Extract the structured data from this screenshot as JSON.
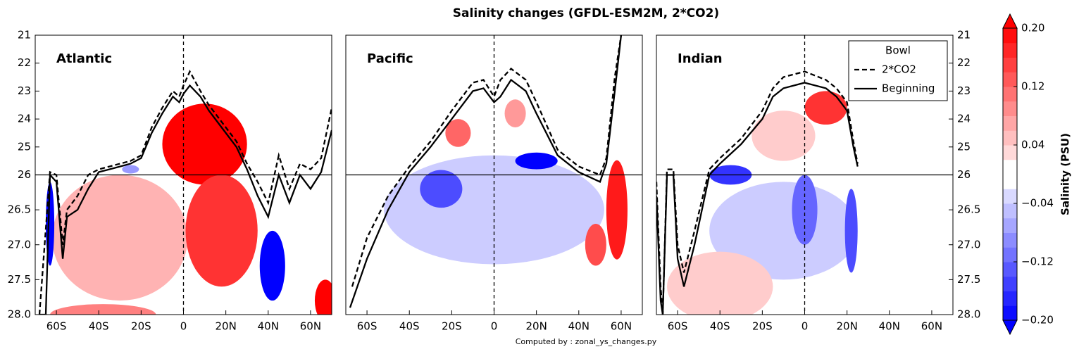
{
  "title": "Salinity changes (GFDL-ESM2M, 2*CO2)",
  "footnote": "Computed by : zonal_ys_changes.py",
  "colorbar": {
    "label": "Salinity (PSU)",
    "extend": "both",
    "levels": [
      -0.2,
      -0.18,
      -0.16,
      -0.14,
      -0.12,
      -0.1,
      -0.08,
      -0.06,
      -0.04,
      -0.02,
      0,
      0.02,
      0.04,
      0.06,
      0.08,
      0.1,
      0.12,
      0.14,
      0.16,
      0.18,
      0.2
    ],
    "ticks": [
      {
        "value": 0.2,
        "label": "0.20"
      },
      0.12,
      0.04,
      {
        "value": -0.04,
        "label": "−0.04"
      },
      {
        "value": -0.12,
        "label": "−0.12"
      },
      {
        "value": -0.2,
        "label": "−0.20"
      }
    ]
  },
  "chart_data": [
    {
      "type": "contour",
      "panel_title": "Atlantic",
      "xlim": [
        -70,
        70
      ],
      "xticks": [
        {
          "value": -60,
          "label": "60S"
        },
        {
          "value": -40,
          "label": "40S"
        },
        {
          "value": -20,
          "label": "20S"
        },
        0,
        {
          "value": 20,
          "label": "20N"
        },
        {
          "value": 40,
          "label": "40N"
        },
        {
          "value": 60,
          "label": "60N"
        }
      ],
      "ylim": [
        21,
        28
      ],
      "yticks": [
        21,
        22,
        23,
        24,
        25,
        26,
        26.5,
        {
          "value": 27,
          "label": "27.0"
        },
        27.5,
        {
          "value": 28,
          "label": "28.0"
        }
      ],
      "ytick_side": "left",
      "hline": 26,
      "vline": 0,
      "fields": [
        {
          "lat": -30,
          "sigma": 26.9,
          "lat_halfwidth": 32,
          "sigma_halfheight": 0.9,
          "value": 0.06
        },
        {
          "lat": 10,
          "sigma": 24.9,
          "lat_halfwidth": 20,
          "sigma_halfheight": 1.3,
          "value": 0.2
        },
        {
          "lat": 18,
          "sigma": 26.8,
          "lat_halfwidth": 17,
          "sigma_halfheight": 0.8,
          "value": 0.16
        },
        {
          "lat": -38,
          "sigma": 28,
          "lat_halfwidth": 25,
          "sigma_halfheight": 0.15,
          "value": 0.1
        },
        {
          "lat": 42,
          "sigma": 27.3,
          "lat_halfwidth": 6,
          "sigma_halfheight": 0.5,
          "value": -0.2
        },
        {
          "lat": -63,
          "sigma": 26.7,
          "lat_halfwidth": 2,
          "sigma_halfheight": 0.6,
          "value": -0.2
        },
        {
          "lat": 67,
          "sigma": 27.8,
          "lat_halfwidth": 5,
          "sigma_halfheight": 0.3,
          "value": 0.2
        },
        {
          "lat": -25,
          "sigma": 25.8,
          "lat_halfwidth": 4,
          "sigma_halfheight": 0.15,
          "value": -0.08
        }
      ],
      "series": [
        {
          "color": "#000000",
          "dashed": true,
          "x": [
            -68,
            -63,
            -60,
            -57,
            -55,
            -50,
            -45,
            -40,
            -35,
            -30,
            -25,
            -20,
            -15,
            -10,
            -5,
            -2,
            0,
            3,
            8,
            12,
            18,
            25,
            30,
            35,
            40,
            45,
            50,
            55,
            60,
            65,
            70
          ],
          "y": [
            28,
            25.9,
            26,
            27,
            26.5,
            26.3,
            26.0,
            25.8,
            25.7,
            25.6,
            25.5,
            25.3,
            24.3,
            23.6,
            23.0,
            23.2,
            22.8,
            22.3,
            23.0,
            23.5,
            24.1,
            24.8,
            25.6,
            26.1,
            26.4,
            25.3,
            26.2,
            25.6,
            25.8,
            25.4,
            23.6
          ]
        },
        {
          "color": "#000000",
          "dashed": false,
          "x": [
            -68,
            -65,
            -63,
            -60,
            -57,
            -55,
            -50,
            -45,
            -40,
            -35,
            -30,
            -25,
            -20,
            -15,
            -10,
            -5,
            -2,
            0,
            3,
            8,
            12,
            18,
            25,
            30,
            35,
            40,
            45,
            50,
            55,
            60,
            65,
            70
          ],
          "y": [
            28,
            28,
            26,
            26.1,
            27.2,
            26.6,
            26.5,
            26.2,
            25.9,
            25.8,
            25.7,
            25.6,
            25.4,
            24.5,
            23.8,
            23.2,
            23.4,
            23.1,
            22.8,
            23.2,
            23.7,
            24.3,
            25,
            25.8,
            26.3,
            26.6,
            26,
            26.4,
            26,
            26.2,
            25.9,
            24.4
          ]
        }
      ]
    },
    {
      "type": "contour",
      "panel_title": "Pacific",
      "xlim": [
        -70,
        70
      ],
      "xticks": [
        {
          "value": -60,
          "label": "60S"
        },
        {
          "value": -40,
          "label": "40S"
        },
        {
          "value": -20,
          "label": "20S"
        },
        0,
        {
          "value": 20,
          "label": "20N"
        },
        {
          "value": 40,
          "label": "40N"
        },
        {
          "value": 60,
          "label": "60N"
        }
      ],
      "ylim": [
        21,
        28
      ],
      "hline": 26,
      "vline": 0,
      "fields": [
        {
          "lat": 0,
          "sigma": 26.5,
          "lat_halfwidth": 52,
          "sigma_halfheight": 0.9,
          "value": -0.04
        },
        {
          "lat": -25,
          "sigma": 26.2,
          "lat_halfwidth": 10,
          "sigma_halfheight": 0.3,
          "value": -0.14
        },
        {
          "lat": 20,
          "sigma": 25.5,
          "lat_halfwidth": 10,
          "sigma_halfheight": 0.3,
          "value": -0.2
        },
        {
          "lat": -17,
          "sigma": 24.5,
          "lat_halfwidth": 6,
          "sigma_halfheight": 0.5,
          "value": 0.12
        },
        {
          "lat": 10,
          "sigma": 23.8,
          "lat_halfwidth": 5,
          "sigma_halfheight": 0.5,
          "value": 0.08
        },
        {
          "lat": 58,
          "sigma": 26.5,
          "lat_halfwidth": 5,
          "sigma_halfheight": 0.8,
          "value": 0.18
        },
        {
          "lat": 48,
          "sigma": 27,
          "lat_halfwidth": 5,
          "sigma_halfheight": 0.3,
          "value": 0.14
        }
      ],
      "series": [
        {
          "color": "#000000",
          "dashed": true,
          "x": [
            -67,
            -60,
            -50,
            -40,
            -30,
            -20,
            -10,
            -5,
            0,
            3,
            8,
            15,
            20,
            30,
            40,
            50,
            53,
            57,
            60
          ],
          "y": [
            27.6,
            26.9,
            26.3,
            25.7,
            24.8,
            23.7,
            22.7,
            22.6,
            23.2,
            22.6,
            22.2,
            22.6,
            23.4,
            25.1,
            25.7,
            26,
            25.4,
            22.5,
            21
          ]
        },
        {
          "color": "#000000",
          "dashed": false,
          "x": [
            -68,
            -60,
            -50,
            -40,
            -30,
            -20,
            -10,
            -5,
            0,
            3,
            8,
            15,
            20,
            30,
            40,
            50,
            53,
            57,
            60
          ],
          "y": [
            27.9,
            27.2,
            26.5,
            25.9,
            25,
            24,
            23,
            22.9,
            23.4,
            23.2,
            22.6,
            23,
            23.8,
            25.3,
            25.9,
            26.1,
            25.6,
            23,
            21
          ]
        }
      ]
    },
    {
      "type": "contour",
      "panel_title": "Indian",
      "xlim": [
        -70,
        70
      ],
      "xticks": [
        {
          "value": -60,
          "label": "60S"
        },
        {
          "value": -40,
          "label": "40S"
        },
        {
          "value": -20,
          "label": "20S"
        },
        0,
        {
          "value": 20,
          "label": "20N"
        },
        {
          "value": 40,
          "label": "40N"
        },
        {
          "value": 60,
          "label": "60N"
        }
      ],
      "ylim": [
        21,
        28
      ],
      "yticks": [
        21,
        22,
        23,
        24,
        25,
        26,
        26.5,
        {
          "value": 27,
          "label": "27.0"
        },
        27.5,
        {
          "value": 28,
          "label": "28.0"
        }
      ],
      "ytick_side": "right",
      "hline": 26,
      "vline": 0,
      "legend": "upper right",
      "legend_title": "Bowl",
      "fields": [
        {
          "lat": -10,
          "sigma": 26.8,
          "lat_halfwidth": 35,
          "sigma_halfheight": 0.7,
          "value": -0.04
        },
        {
          "lat": -10,
          "sigma": 24.6,
          "lat_halfwidth": 15,
          "sigma_halfheight": 0.9,
          "value": 0.04
        },
        {
          "lat": -40,
          "sigma": 27.6,
          "lat_halfwidth": 25,
          "sigma_halfheight": 0.5,
          "value": 0.04
        },
        {
          "lat": 10,
          "sigma": 23.6,
          "lat_halfwidth": 10,
          "sigma_halfheight": 0.6,
          "value": 0.16
        },
        {
          "lat": -35,
          "sigma": 26,
          "lat_halfwidth": 10,
          "sigma_halfheight": 0.2,
          "value": -0.16
        },
        {
          "lat": 0,
          "sigma": 26.5,
          "lat_halfwidth": 6,
          "sigma_halfheight": 0.5,
          "value": -0.12
        },
        {
          "lat": 22,
          "sigma": 26.8,
          "lat_halfwidth": 3,
          "sigma_halfheight": 0.6,
          "value": -0.14
        }
      ],
      "series": [
        {
          "name": "2*CO2",
          "color": "#000000",
          "dashed": true,
          "x": [
            -70,
            -68,
            -67,
            -65,
            -62,
            -60,
            -57,
            -52,
            -45,
            -40,
            -30,
            -20,
            -15,
            -10,
            0,
            10,
            15,
            20,
            23,
            25
          ],
          "y": [
            26.1,
            27.6,
            28,
            25.8,
            25.8,
            27,
            27.4,
            26.8,
            25.8,
            25.4,
            24.7,
            23.7,
            22.9,
            22.5,
            22.3,
            22.6,
            22.9,
            23.4,
            24.8,
            25.6
          ]
        },
        {
          "name": "Beginning",
          "color": "#000000",
          "dashed": false,
          "x": [
            -70,
            -68,
            -67,
            -65,
            -62,
            -60,
            -57,
            -52,
            -45,
            -40,
            -30,
            -20,
            -15,
            -10,
            0,
            10,
            15,
            20,
            23,
            25
          ],
          "y": [
            26.3,
            27.8,
            28,
            26,
            26,
            27.2,
            27.6,
            27,
            26,
            25.6,
            24.9,
            24,
            23.2,
            22.9,
            22.7,
            22.9,
            23.2,
            23.7,
            25,
            25.7
          ]
        }
      ]
    }
  ]
}
